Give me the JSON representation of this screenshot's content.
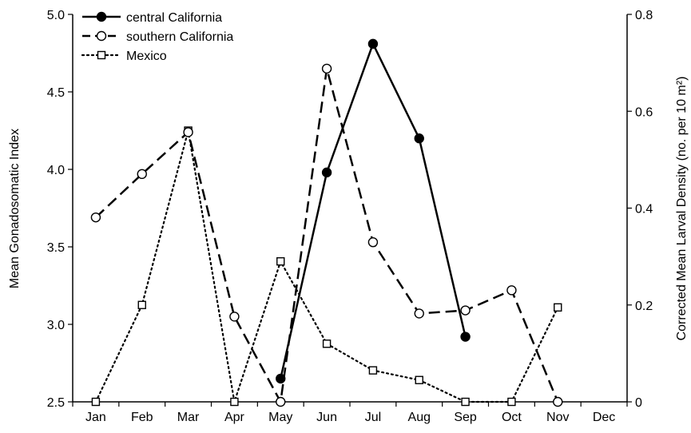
{
  "chart_data": {
    "type": "line",
    "categories": [
      "Jan",
      "Feb",
      "Mar",
      "Apr",
      "May",
      "Jun",
      "Jul",
      "Aug",
      "Sep",
      "Oct",
      "Nov",
      "Dec"
    ],
    "ylabel": "Mean Gonadosomatic Index",
    "y2label": "Corrected Mean Larval Density (no. per 10 m²)",
    "ylim": [
      2.5,
      5.0
    ],
    "y2lim": [
      0,
      0.8
    ],
    "yticks": [
      "2.5",
      "3.0",
      "3.5",
      "4.0",
      "4.5",
      "5.0"
    ],
    "y2ticks": [
      "0",
      "0.2",
      "0.4",
      "0.6",
      "0.8"
    ],
    "grid": false,
    "legend_position": "top-left",
    "series": [
      {
        "name": "central California",
        "axis": "left",
        "style": "solid",
        "marker": "filled-circle",
        "points": [
          {
            "x": "May",
            "y": 2.65
          },
          {
            "x": "Jun",
            "y": 3.98
          },
          {
            "x": "Jul",
            "y": 4.81
          },
          {
            "x": "Aug",
            "y": 4.2
          },
          {
            "x": "Sep",
            "y": 2.92
          }
        ]
      },
      {
        "name": "southern California",
        "axis": "left",
        "style": "dashed",
        "marker": "open-circle",
        "points": [
          {
            "x": "Jan",
            "y": 3.69
          },
          {
            "x": "Feb",
            "y": 3.97
          },
          {
            "x": "Mar",
            "y": 4.24
          },
          {
            "x": "Apr",
            "y": 3.05
          },
          {
            "x": "May",
            "y": 2.5
          },
          {
            "x": "Jun",
            "y": 4.65
          },
          {
            "x": "Jul",
            "y": 3.53
          },
          {
            "x": "Aug",
            "y": 3.07
          },
          {
            "x": "Sep",
            "y": 3.09
          },
          {
            "x": "Oct",
            "y": 3.22
          },
          {
            "x": "Nov",
            "y": 2.5
          }
        ]
      },
      {
        "name": "Mexico",
        "axis": "right",
        "style": "dotted",
        "marker": "open-square",
        "points": [
          {
            "x": "Jan",
            "y": 0.0
          },
          {
            "x": "Feb",
            "y": 0.2
          },
          {
            "x": "Mar",
            "y": 0.56
          },
          {
            "x": "Apr",
            "y": 0.0
          },
          {
            "x": "May",
            "y": 0.29
          },
          {
            "x": "Jun",
            "y": 0.12
          },
          {
            "x": "Jul",
            "y": 0.065
          },
          {
            "x": "Aug",
            "y": 0.045
          },
          {
            "x": "Sep",
            "y": 0.0
          },
          {
            "x": "Oct",
            "y": 0.0
          },
          {
            "x": "Nov",
            "y": 0.195
          }
        ]
      }
    ]
  }
}
